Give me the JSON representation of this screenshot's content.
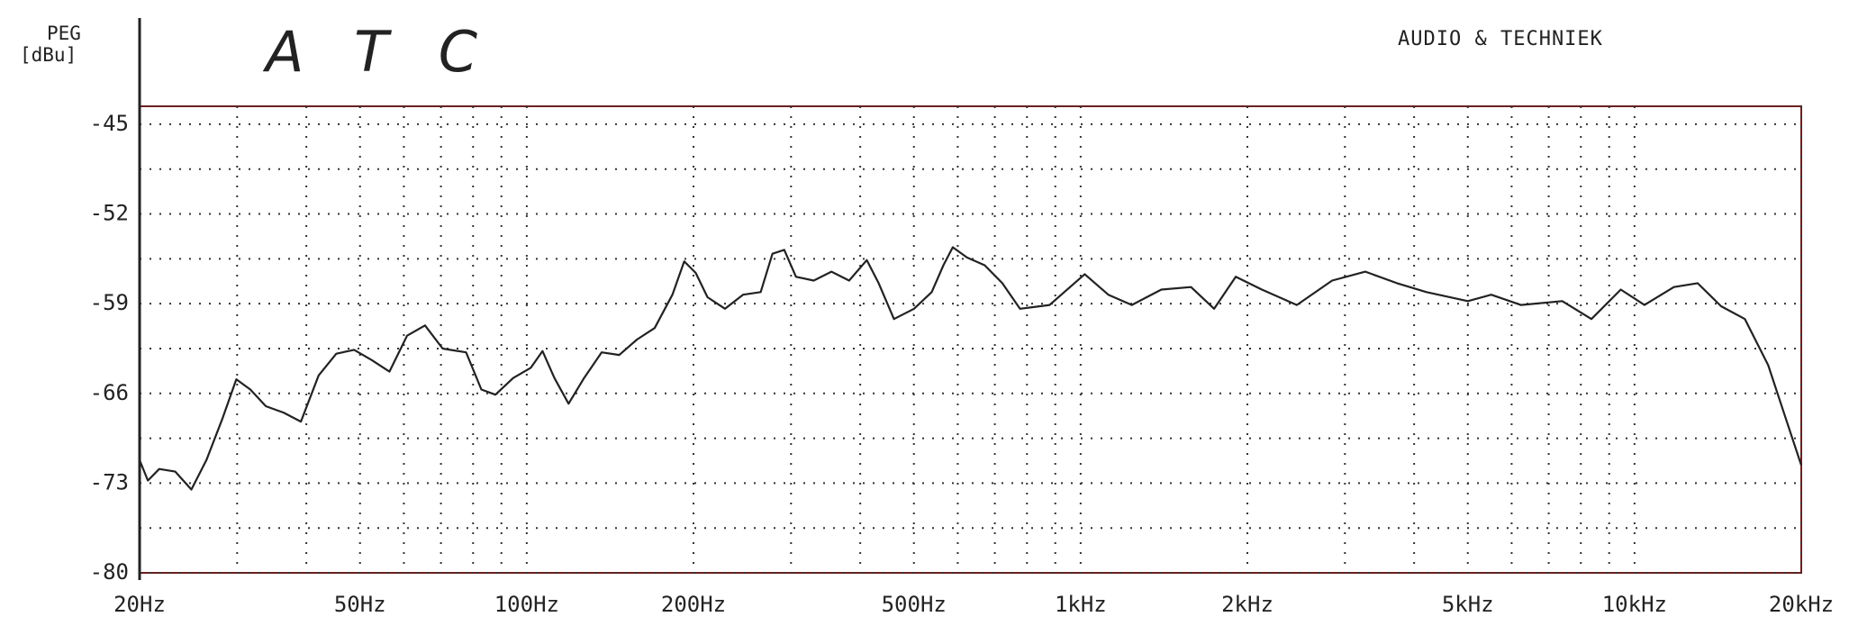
{
  "chart_data": {
    "type": "line",
    "title": "A T C",
    "subtitle": "AUDIO & TECHNIEK",
    "y_label": "PEG",
    "y_unit": "[dBu]",
    "x_scale": "log",
    "grid": true,
    "xlim": [
      20,
      20000
    ],
    "xticks": [
      {
        "value": 20,
        "label": "20Hz"
      },
      {
        "value": 50,
        "label": "50Hz"
      },
      {
        "value": 100,
        "label": "100Hz"
      },
      {
        "value": 200,
        "label": "200Hz"
      },
      {
        "value": 500,
        "label": "500Hz"
      },
      {
        "value": 1000,
        "label": "1kHz"
      },
      {
        "value": 2000,
        "label": "2kHz"
      },
      {
        "value": 5000,
        "label": "5kHz"
      },
      {
        "value": 10000,
        "label": "10kHz"
      },
      {
        "value": 20000,
        "label": "20kHz"
      }
    ],
    "ylim": [
      -80,
      -43.6
    ],
    "yticks": [
      -45,
      -52,
      -59,
      -66,
      -73,
      -80
    ],
    "x": [
      20,
      20.7,
      21.7,
      23.2,
      24.8,
      26.4,
      28.2,
      29.9,
      31.7,
      33.8,
      36.4,
      39.1,
      42.1,
      45.3,
      48.8,
      52.5,
      56.5,
      60.8,
      65.5,
      70.5,
      77.7,
      82.8,
      87.8,
      94.5,
      101.7,
      106.8,
      112.2,
      119,
      126.9,
      136.5,
      146.9,
      158.1,
      170.2,
      183.2,
      192.4,
      201.9,
      212,
      228,
      245.7,
      264.4,
      277.7,
      291.7,
      306.3,
      329.7,
      354.9,
      381.9,
      411.1,
      431.8,
      460.3,
      500.3,
      538.4,
      565.2,
      587.7,
      623.5,
      671,
      722,
      777,
      879,
      1017,
      1122,
      1237,
      1399,
      1582,
      1742,
      1906,
      2124,
      2456,
      2845,
      3266,
      3725,
      4211,
      5001,
      5510,
      6236,
      7404,
      8359,
      9446,
      10420,
      11780,
      13000,
      14330,
      15820,
      17430,
      18770,
      20000
    ],
    "series": [
      {
        "color": "#222222",
        "values": [
          -71.2,
          -72.8,
          -71.9,
          -72.1,
          -73.5,
          -71.2,
          -68.0,
          -64.9,
          -65.7,
          -67.0,
          -67.5,
          -68.2,
          -64.6,
          -62.9,
          -62.6,
          -63.4,
          -64.3,
          -61.5,
          -60.7,
          -62.5,
          -62.8,
          -65.7,
          -66.1,
          -64.8,
          -64.0,
          -62.7,
          -64.8,
          -66.8,
          -64.8,
          -62.8,
          -63.0,
          -61.8,
          -60.9,
          -58.3,
          -55.7,
          -56.6,
          -58.5,
          -59.4,
          -58.3,
          -58.1,
          -55.1,
          -54.8,
          -56.9,
          -57.2,
          -56.5,
          -57.2,
          -55.6,
          -57.4,
          -60.2,
          -59.4,
          -58.1,
          -56.0,
          -54.6,
          -55.4,
          -56.0,
          -57.4,
          -59.4,
          -59.1,
          -56.7,
          -58.3,
          -59.1,
          -57.9,
          -57.7,
          -59.4,
          -56.9,
          -57.9,
          -59.1,
          -57.2,
          -56.5,
          -57.4,
          -58.1,
          -58.8,
          -58.3,
          -59.1,
          -58.8,
          -60.2,
          -57.9,
          -59.1,
          -57.7,
          -57.4,
          -59.2,
          -60.2,
          -63.8,
          -68.0,
          -71.6
        ]
      }
    ]
  }
}
